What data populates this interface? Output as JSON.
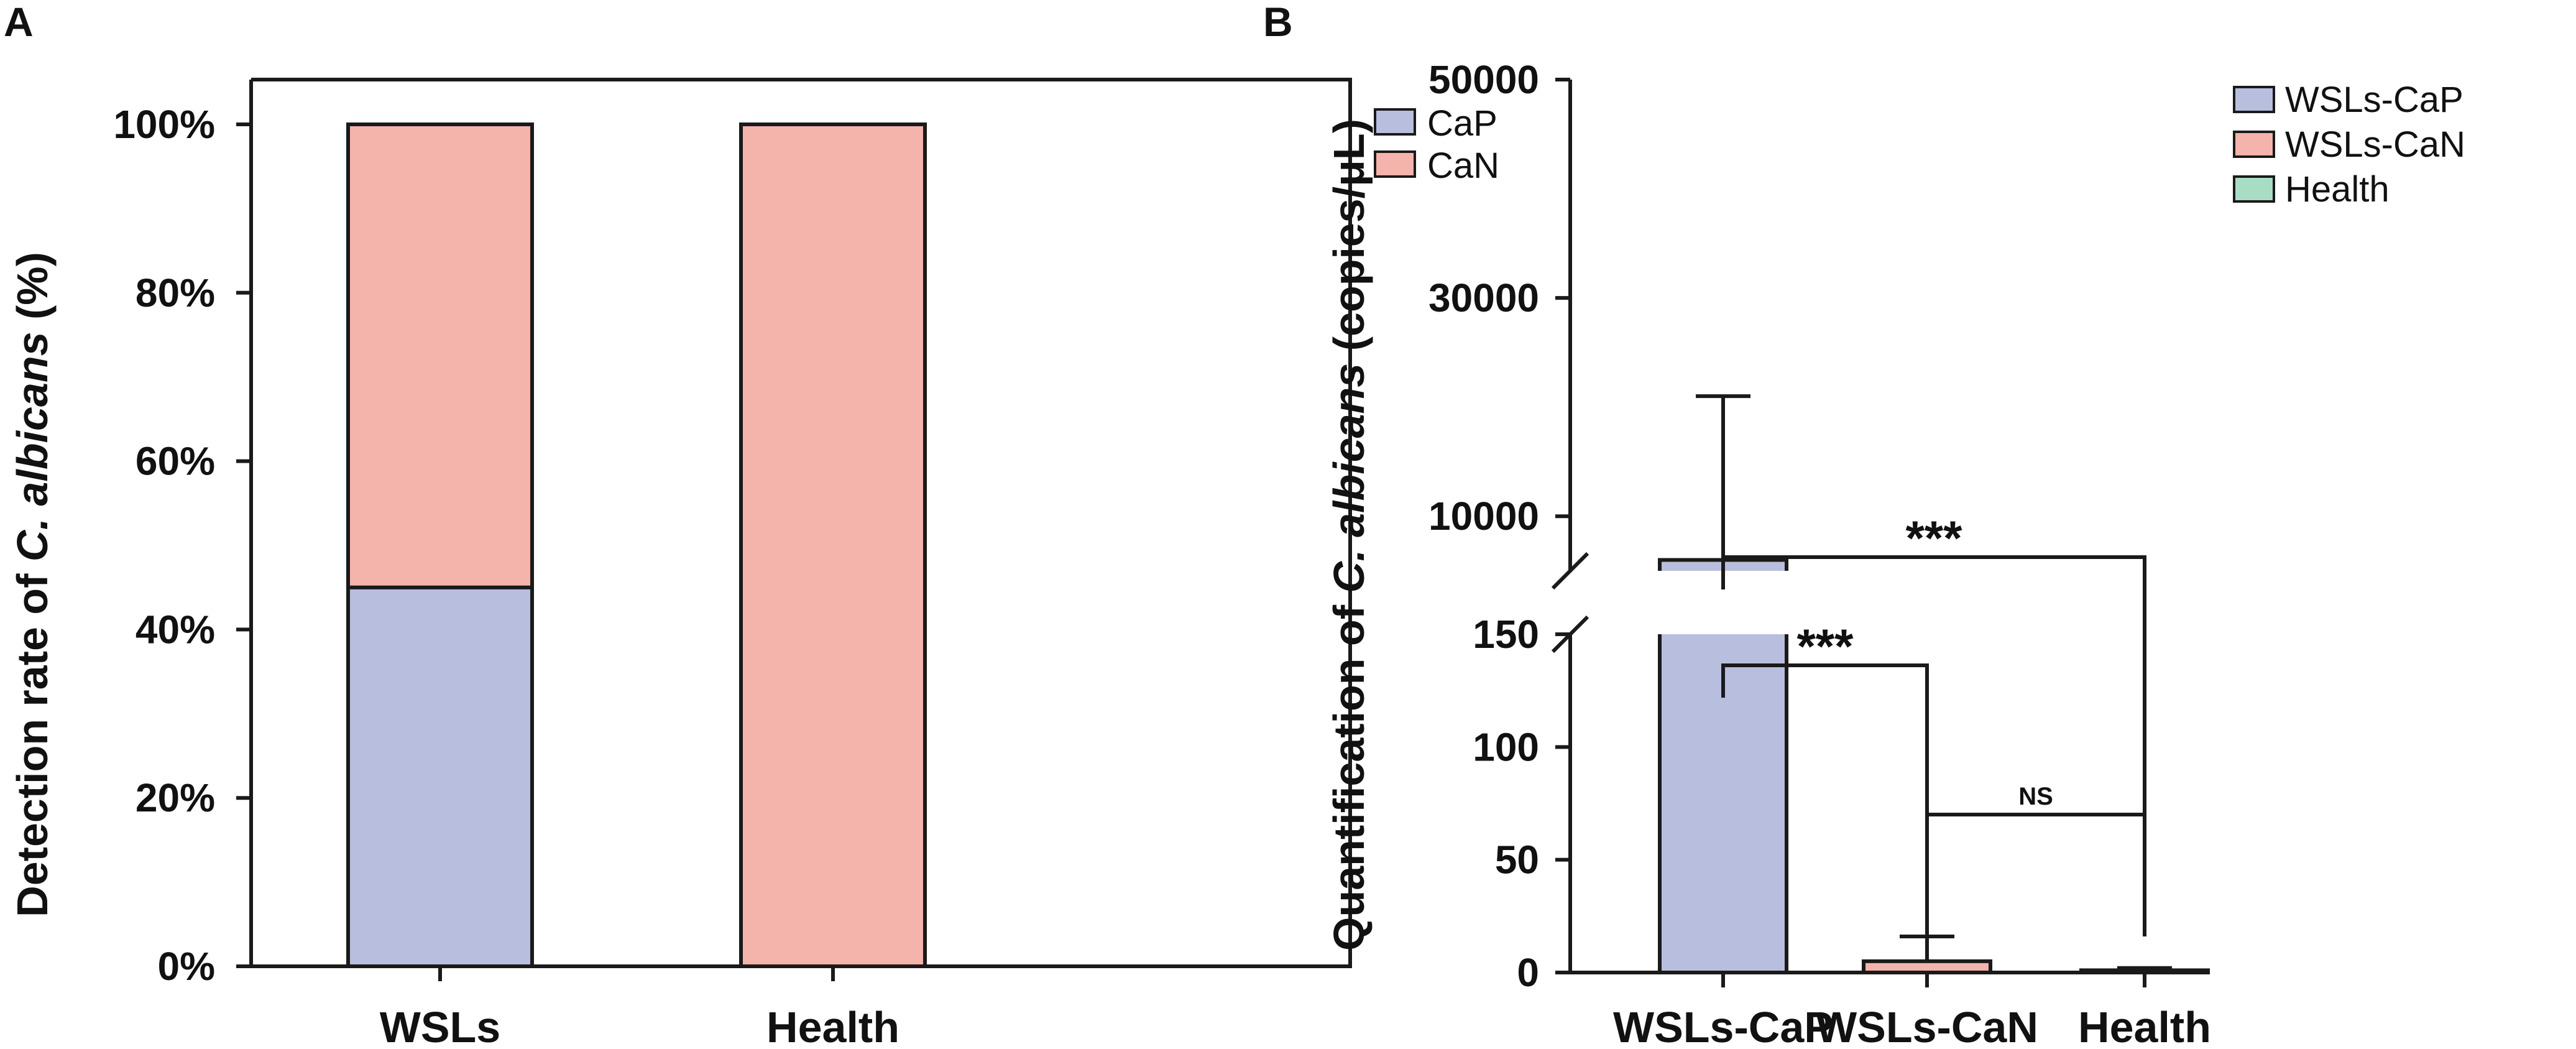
{
  "panel_a": {
    "letter": "A",
    "legend": [
      "CaP",
      "CaN"
    ],
    "ylabel_prefix": "Detection rate of ",
    "ylabel_italic": "C. albicans",
    "ylabel_suffix": " (%)"
  },
  "panel_b": {
    "letter": "B",
    "ylabel_prefix": "Quantification of ",
    "ylabel_italic": "C. albicans",
    "ylabel_suffix": " (copies/μL)",
    "legend": [
      "WSLs-CaP",
      "WSLs-CaN",
      "Health"
    ],
    "sig_main": "***",
    "sig_second": "***",
    "sig_ns": "NS"
  },
  "chart_data": [
    {
      "type": "bar",
      "stacked": true,
      "title": "",
      "xlabel": "",
      "ylabel": "Detection rate of C. albicans (%)",
      "categories": [
        "WSLs",
        "Health"
      ],
      "series": [
        {
          "name": "CaP",
          "values": [
            45,
            0
          ],
          "color": "#b8bedd"
        },
        {
          "name": "CaN",
          "values": [
            55,
            100
          ],
          "color": "#f4b3ab"
        }
      ],
      "ylim": [
        0,
        100
      ],
      "yticks": [
        0,
        20,
        40,
        60,
        80,
        100
      ],
      "ytick_labels": [
        "0%",
        "20%",
        "40%",
        "60%",
        "80%",
        "100%"
      ],
      "legend_position": "top-right"
    },
    {
      "type": "bar",
      "title": "",
      "xlabel": "",
      "ylabel": "Quantification of C. albicans (copies/μL)",
      "categories": [
        "WSLs-CaP",
        "WSLs-CaN",
        "Health"
      ],
      "values": [
        6000,
        5,
        1
      ],
      "error_upper": [
        21000,
        16,
        2
      ],
      "colors": [
        "#b8bedd",
        "#f4b3ab",
        "#a8dcc5"
      ],
      "axis_break": true,
      "lower_segment": {
        "ylim": [
          0,
          150
        ],
        "yticks": [
          0,
          50,
          100,
          150
        ]
      },
      "upper_segment": {
        "ylim": [
          5000,
          50000
        ],
        "yticks": [
          10000,
          30000,
          50000
        ]
      },
      "significance": [
        {
          "from": "WSLs-CaP",
          "to": "WSLs-CaN",
          "label": "***"
        },
        {
          "from": "WSLs-CaP",
          "to": "Health",
          "label": "***"
        },
        {
          "from": "WSLs-CaN",
          "to": "Health",
          "label": "NS"
        }
      ],
      "legend_position": "top-right"
    }
  ]
}
